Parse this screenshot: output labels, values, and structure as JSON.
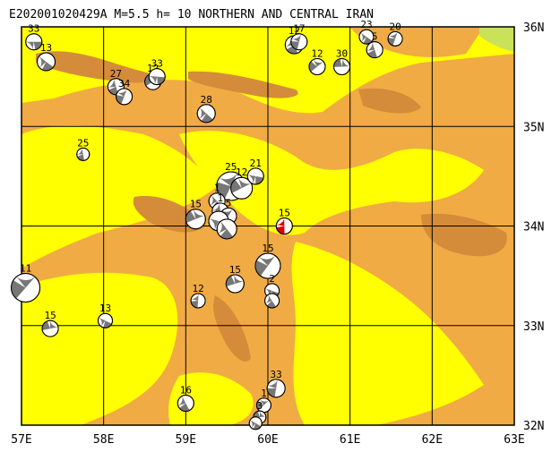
{
  "title": "E202001020429A  M=5.5  h= 10  NORTHERN AND CENTRAL IRAN",
  "map": {
    "lon_range": [
      57,
      63
    ],
    "lat_range": [
      32,
      36
    ],
    "x_ticks": [
      "57E",
      "58E",
      "59E",
      "60E",
      "61E",
      "62E",
      "63E"
    ],
    "y_ticks": [
      "36N",
      "35N",
      "34N",
      "33N",
      "32N"
    ],
    "colors": {
      "land_low": "#f0ab44",
      "land_high": "#ffff00",
      "land_mid": "#d48c3a",
      "vegetation": "#c9e25a",
      "grid": "#000000",
      "mechanism_dark": "#777777",
      "highlight": "#dd0000"
    }
  },
  "events": [
    {
      "lon": 57.15,
      "lat": 35.85,
      "depth": "33",
      "size": 9,
      "red": false
    },
    {
      "lon": 57.3,
      "lat": 35.65,
      "depth": "13",
      "size": 10,
      "red": false
    },
    {
      "lon": 58.15,
      "lat": 35.4,
      "depth": "27",
      "size": 9,
      "red": false
    },
    {
      "lon": 58.25,
      "lat": 35.3,
      "depth": "34",
      "size": 9,
      "red": false
    },
    {
      "lon": 58.6,
      "lat": 35.45,
      "depth": "12",
      "size": 9,
      "red": false
    },
    {
      "lon": 58.65,
      "lat": 35.5,
      "depth": "33",
      "size": 9,
      "red": false
    },
    {
      "lon": 59.25,
      "lat": 35.13,
      "depth": "28",
      "size": 10,
      "red": false
    },
    {
      "lon": 57.75,
      "lat": 34.72,
      "depth": "25",
      "size": 7,
      "red": false
    },
    {
      "lon": 59.55,
      "lat": 34.4,
      "depth": "25",
      "size": 16,
      "red": false
    },
    {
      "lon": 59.68,
      "lat": 34.38,
      "depth": "12",
      "size": 12,
      "red": false
    },
    {
      "lon": 59.85,
      "lat": 34.5,
      "depth": "21",
      "size": 9,
      "red": false
    },
    {
      "lon": 59.38,
      "lat": 34.25,
      "depth": "1",
      "size": 9,
      "red": false
    },
    {
      "lon": 59.42,
      "lat": 34.15,
      "depth": "1",
      "size": 9,
      "red": false
    },
    {
      "lon": 59.52,
      "lat": 34.1,
      "depth": "5",
      "size": 9,
      "red": false
    },
    {
      "lon": 59.12,
      "lat": 34.07,
      "depth": "15",
      "size": 11,
      "red": false
    },
    {
      "lon": 59.4,
      "lat": 34.05,
      "depth": "",
      "size": 11,
      "red": false
    },
    {
      "lon": 59.5,
      "lat": 33.97,
      "depth": "",
      "size": 11,
      "red": false
    },
    {
      "lon": 60.2,
      "lat": 34.0,
      "depth": "15",
      "size": 9,
      "red": true
    },
    {
      "lon": 60.0,
      "lat": 33.6,
      "depth": "15",
      "size": 14,
      "red": false
    },
    {
      "lon": 59.6,
      "lat": 33.42,
      "depth": "15",
      "size": 10,
      "red": false
    },
    {
      "lon": 60.05,
      "lat": 33.35,
      "depth": "2",
      "size": 8,
      "red": false
    },
    {
      "lon": 60.05,
      "lat": 33.25,
      "depth": "",
      "size": 8,
      "red": false
    },
    {
      "lon": 59.15,
      "lat": 33.25,
      "depth": "12",
      "size": 8,
      "red": false
    },
    {
      "lon": 57.05,
      "lat": 33.38,
      "depth": "11",
      "size": 16,
      "red": false
    },
    {
      "lon": 57.35,
      "lat": 32.97,
      "depth": "15",
      "size": 9,
      "red": false
    },
    {
      "lon": 58.02,
      "lat": 33.05,
      "depth": "13",
      "size": 8,
      "red": false
    },
    {
      "lon": 59.0,
      "lat": 32.22,
      "depth": "16",
      "size": 9,
      "red": false
    },
    {
      "lon": 60.1,
      "lat": 32.37,
      "depth": "33",
      "size": 10,
      "red": false
    },
    {
      "lon": 59.95,
      "lat": 32.2,
      "depth": "1",
      "size": 8,
      "red": false
    },
    {
      "lon": 59.9,
      "lat": 32.08,
      "depth": "3",
      "size": 7,
      "red": false
    },
    {
      "lon": 59.85,
      "lat": 32.02,
      "depth": "",
      "size": 7,
      "red": false
    },
    {
      "lon": 60.32,
      "lat": 35.82,
      "depth": "12",
      "size": 10,
      "red": false
    },
    {
      "lon": 60.38,
      "lat": 35.85,
      "depth": "17",
      "size": 9,
      "red": false
    },
    {
      "lon": 60.6,
      "lat": 35.6,
      "depth": "12",
      "size": 9,
      "red": false
    },
    {
      "lon": 60.9,
      "lat": 35.6,
      "depth": "30",
      "size": 9,
      "red": false
    },
    {
      "lon": 61.2,
      "lat": 35.9,
      "depth": "23",
      "size": 8,
      "red": false
    },
    {
      "lon": 61.3,
      "lat": 35.77,
      "depth": "5",
      "size": 9,
      "red": false
    },
    {
      "lon": 61.55,
      "lat": 35.88,
      "depth": "20",
      "size": 8,
      "red": false
    }
  ]
}
